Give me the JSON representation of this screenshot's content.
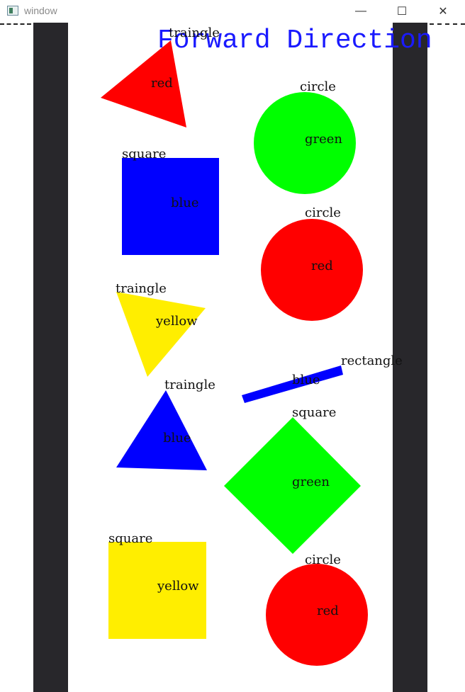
{
  "window": {
    "title": "window",
    "controls": {
      "minimize": "—",
      "maximize": "☐",
      "close": "✕"
    }
  },
  "canvas": {
    "heading": "Forward Direction",
    "colors": {
      "lane": "#28272b",
      "heading": "#1a1aff",
      "background": "#ffffff"
    },
    "shapes": [
      {
        "kind": "triangle",
        "shape_label": "traingle",
        "color_label": "red",
        "fill": "#ff0000"
      },
      {
        "kind": "circle",
        "shape_label": "circle",
        "color_label": "green",
        "fill": "#00ff00"
      },
      {
        "kind": "square",
        "shape_label": "square",
        "color_label": "blue",
        "fill": "#0000ff"
      },
      {
        "kind": "circle",
        "shape_label": "circle",
        "color_label": "red",
        "fill": "#ff0000"
      },
      {
        "kind": "triangle",
        "shape_label": "traingle",
        "color_label": "yellow",
        "fill": "#ffee00"
      },
      {
        "kind": "rectangle",
        "shape_label": "rectangle",
        "color_label": "blue",
        "fill": "#0000ff"
      },
      {
        "kind": "triangle",
        "shape_label": "traingle",
        "color_label": "blue",
        "fill": "#0000ff"
      },
      {
        "kind": "square",
        "shape_label": "square",
        "color_label": "green",
        "fill": "#00ff00"
      },
      {
        "kind": "square",
        "shape_label": "square",
        "color_label": "yellow",
        "fill": "#ffee00"
      },
      {
        "kind": "circle",
        "shape_label": "circle",
        "color_label": "red",
        "fill": "#ff0000"
      }
    ]
  }
}
